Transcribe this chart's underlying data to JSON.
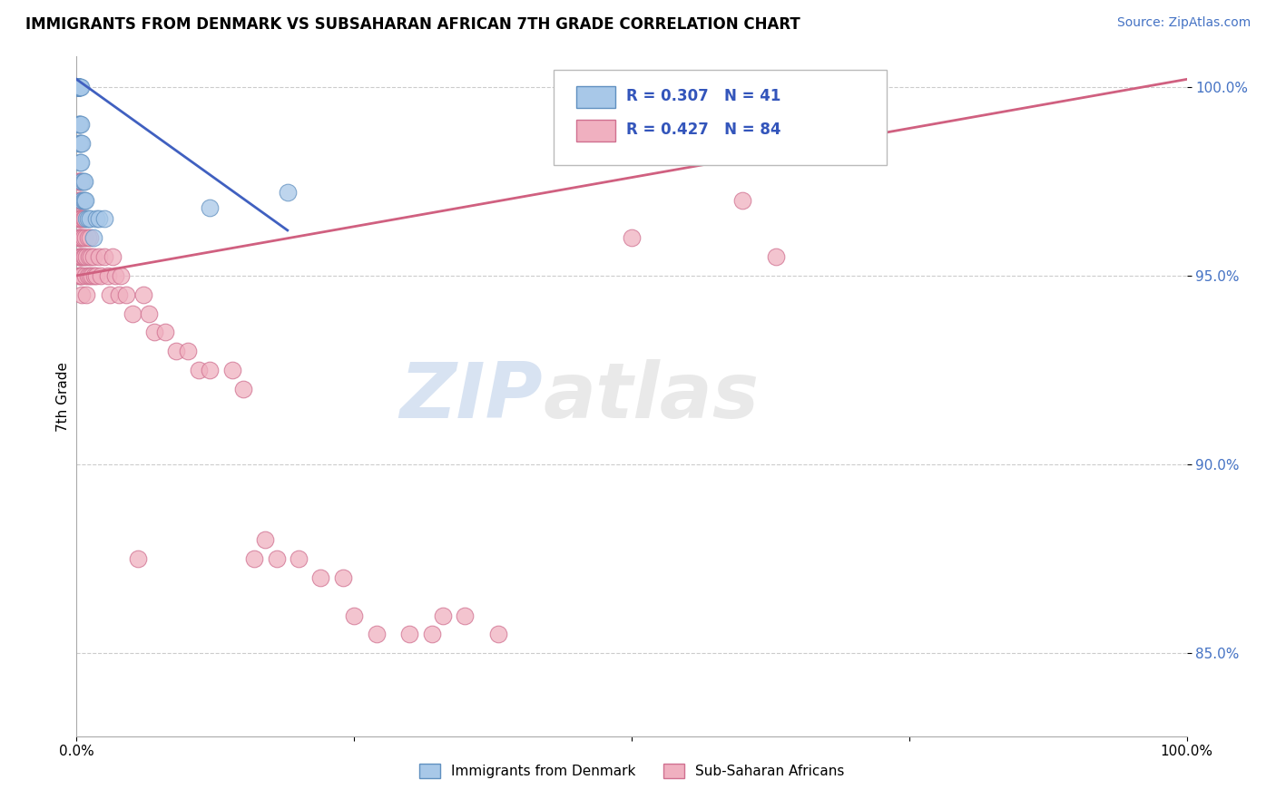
{
  "title": "IMMIGRANTS FROM DENMARK VS SUBSAHARAN AFRICAN 7TH GRADE CORRELATION CHART",
  "source_text": "Source: ZipAtlas.com",
  "ylabel": "7th Grade",
  "xlim": [
    0,
    1.0
  ],
  "ylim": [
    0.828,
    1.008
  ],
  "yticks": [
    0.85,
    0.9,
    0.95,
    1.0
  ],
  "ytick_labels": [
    "85.0%",
    "90.0%",
    "95.0%",
    "100.0%"
  ],
  "legend_labels_bottom": [
    "Immigrants from Denmark",
    "Sub-Saharan Africans"
  ],
  "watermark_zip": "ZIP",
  "watermark_atlas": "atlas",
  "denmark_color": "#a8c8e8",
  "denmark_edge": "#6090c0",
  "ssa_color": "#f0b0c0",
  "ssa_edge": "#d07090",
  "denmark_line_color": "#4060c0",
  "ssa_line_color": "#d06080",
  "denmark_scatter_x": [
    0.0005,
    0.001,
    0.001,
    0.001,
    0.001,
    0.001,
    0.001,
    0.0015,
    0.002,
    0.002,
    0.002,
    0.002,
    0.002,
    0.002,
    0.002,
    0.003,
    0.003,
    0.003,
    0.003,
    0.003,
    0.004,
    0.004,
    0.004,
    0.004,
    0.005,
    0.005,
    0.005,
    0.006,
    0.006,
    0.007,
    0.007,
    0.008,
    0.009,
    0.01,
    0.012,
    0.015,
    0.018,
    0.02,
    0.025,
    0.12,
    0.19
  ],
  "denmark_scatter_y": [
    1.0,
    1.0,
    1.0,
    1.0,
    1.0,
    1.0,
    1.0,
    1.0,
    1.0,
    1.0,
    1.0,
    1.0,
    0.99,
    0.99,
    0.985,
    1.0,
    1.0,
    0.99,
    0.985,
    0.98,
    1.0,
    0.99,
    0.985,
    0.98,
    0.985,
    0.975,
    0.97,
    0.975,
    0.97,
    0.975,
    0.97,
    0.97,
    0.965,
    0.965,
    0.965,
    0.96,
    0.965,
    0.965,
    0.965,
    0.968,
    0.972
  ],
  "ssa_scatter_x": [
    0.001,
    0.001,
    0.001,
    0.001,
    0.002,
    0.002,
    0.002,
    0.002,
    0.002,
    0.003,
    0.003,
    0.003,
    0.003,
    0.003,
    0.003,
    0.004,
    0.004,
    0.004,
    0.004,
    0.004,
    0.004,
    0.005,
    0.005,
    0.005,
    0.005,
    0.005,
    0.006,
    0.006,
    0.006,
    0.007,
    0.007,
    0.008,
    0.008,
    0.009,
    0.009,
    0.01,
    0.01,
    0.011,
    0.012,
    0.012,
    0.013,
    0.014,
    0.015,
    0.016,
    0.018,
    0.02,
    0.022,
    0.025,
    0.028,
    0.03,
    0.032,
    0.035,
    0.038,
    0.04,
    0.045,
    0.05,
    0.055,
    0.06,
    0.065,
    0.07,
    0.08,
    0.09,
    0.1,
    0.11,
    0.12,
    0.14,
    0.15,
    0.16,
    0.17,
    0.18,
    0.2,
    0.22,
    0.24,
    0.25,
    0.27,
    0.3,
    0.32,
    0.33,
    0.35,
    0.38,
    0.5,
    0.6,
    0.63
  ],
  "ssa_scatter_y": [
    0.975,
    0.97,
    0.965,
    0.96,
    0.975,
    0.965,
    0.96,
    0.955,
    0.95,
    0.975,
    0.97,
    0.965,
    0.96,
    0.955,
    0.95,
    0.975,
    0.97,
    0.965,
    0.96,
    0.955,
    0.95,
    0.965,
    0.96,
    0.955,
    0.95,
    0.945,
    0.965,
    0.96,
    0.955,
    0.965,
    0.955,
    0.96,
    0.95,
    0.955,
    0.945,
    0.96,
    0.95,
    0.955,
    0.96,
    0.95,
    0.955,
    0.95,
    0.955,
    0.95,
    0.95,
    0.955,
    0.95,
    0.955,
    0.95,
    0.945,
    0.955,
    0.95,
    0.945,
    0.95,
    0.945,
    0.94,
    0.875,
    0.945,
    0.94,
    0.935,
    0.935,
    0.93,
    0.93,
    0.925,
    0.925,
    0.925,
    0.92,
    0.875,
    0.88,
    0.875,
    0.875,
    0.87,
    0.87,
    0.86,
    0.855,
    0.855,
    0.855,
    0.86,
    0.86,
    0.855,
    0.96,
    0.97,
    0.955
  ],
  "denmark_line_x0": 0.0,
  "denmark_line_y0": 1.002,
  "denmark_line_x1": 0.19,
  "denmark_line_y1": 0.962,
  "ssa_line_x0": 0.0,
  "ssa_line_y0": 0.95,
  "ssa_line_x1": 1.0,
  "ssa_line_y1": 1.002
}
